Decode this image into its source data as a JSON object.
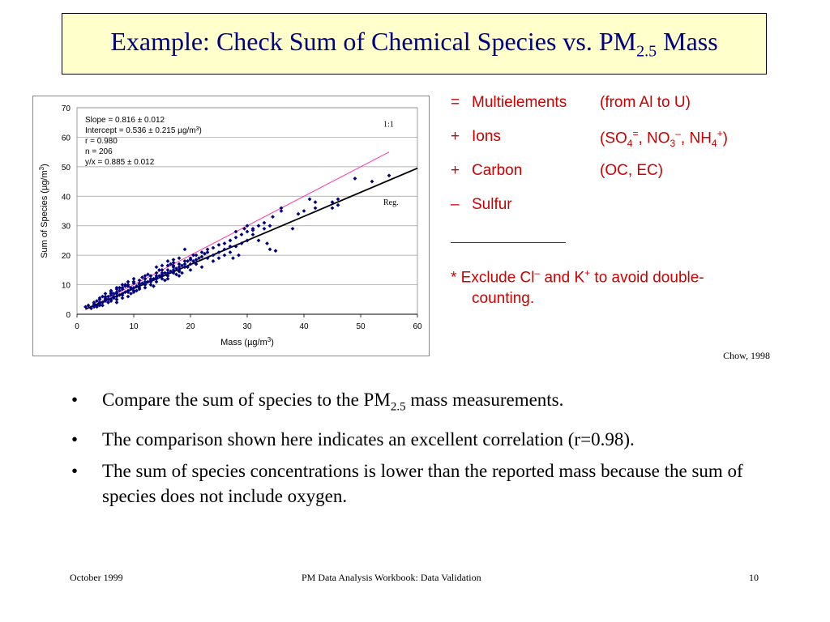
{
  "slide": {
    "title_main": "Example: Check Sum of Chemical Species vs. PM",
    "title_sub": "2.5",
    "title_tail": " Mass"
  },
  "legend": {
    "rows": [
      {
        "op": "=",
        "name": "Multielements",
        "paren": "(from Al to U)"
      },
      {
        "op": "+",
        "name": "Ions"
      },
      {
        "op": "+",
        "name": "Carbon",
        "paren": "(OC, EC)"
      },
      {
        "op": "–",
        "name": "Sulfur"
      }
    ],
    "ions_paren": {
      "open": "(SO",
      "so_sub": "4",
      "so_sup": "=",
      "mid1": ", NO",
      "no_sub": "3",
      "no_sup": "–",
      "mid2": ", NH",
      "nh_sub": "4",
      "nh_sup": "+",
      "close": ")"
    },
    "note": {
      "part1": "* Exclude Cl",
      "cl_sup": "–",
      "part2": " and K",
      "k_sup": "+",
      "part3": " to avoid double-",
      "line2": "counting."
    }
  },
  "citation": "Chow, 1998",
  "bullets": [
    {
      "pre": "Compare the sum of species to the PM",
      "sub": "2.5",
      "post": " mass measurements."
    },
    {
      "pre": "The comparison shown here indicates an excellent correlation (r=0.98)."
    },
    {
      "pre": "The sum of species concentrations is lower than the reported mass because the sum of species does not include oxygen."
    }
  ],
  "bullet_symbol": "•",
  "footer": {
    "left": "October 1999",
    "center": "PM Data Analysis Workbook:  Data Validation",
    "right": "10"
  },
  "colors": {
    "title_bg": "#ffffcc",
    "title_text": "#000080",
    "legend_text": "#cc0000",
    "points": "#000080",
    "one_to_one_line": "#ff33aa",
    "regression_line": "#000000"
  },
  "chart_data": {
    "type": "scatter",
    "xlabel": "Mass (µg/m",
    "xlabel_sup": "3",
    "xlabel_close": ")",
    "ylabel": "Sum of Species (µg/m",
    "ylabel_sup": "3",
    "ylabel_close": ")",
    "xlim": [
      0,
      60
    ],
    "ylim": [
      0,
      70
    ],
    "xticks": [
      0,
      10,
      20,
      30,
      40,
      50,
      60
    ],
    "yticks": [
      0,
      10,
      20,
      30,
      40,
      50,
      60,
      70
    ],
    "grid": "horizontal",
    "stats": [
      "Slope = 0.816 ± 0.012",
      "Intercept = 0.536 ± 0.215 µg/m",
      "r = 0.980",
      "n = 206",
      "y/x = 0.885 ± 0.012"
    ],
    "intercept_unit_sup": "3",
    "intercept_unit_close": ")",
    "lines": [
      {
        "label": "1:1",
        "slope": 1,
        "intercept": 0
      },
      {
        "label": "Reg.",
        "slope": 0.816,
        "intercept": 0.536
      }
    ],
    "points": [
      [
        1.5,
        2.5
      ],
      [
        2.5,
        2
      ],
      [
        3,
        3
      ],
      [
        3,
        4
      ],
      [
        3.5,
        2.5
      ],
      [
        3.5,
        4.5
      ],
      [
        4,
        3
      ],
      [
        4,
        5
      ],
      [
        4.5,
        4
      ],
      [
        4.5,
        6
      ],
      [
        5,
        4.5
      ],
      [
        5,
        5.5
      ],
      [
        5,
        7
      ],
      [
        5.5,
        5
      ],
      [
        5.5,
        6
      ],
      [
        6,
        5
      ],
      [
        6,
        6.5
      ],
      [
        6,
        7.5
      ],
      [
        6.5,
        5.5
      ],
      [
        6.5,
        7
      ],
      [
        7,
        6
      ],
      [
        7,
        7
      ],
      [
        7,
        8.5
      ],
      [
        7,
        4
      ],
      [
        7.5,
        6.5
      ],
      [
        7.5,
        8
      ],
      [
        8,
        7
      ],
      [
        8,
        9
      ],
      [
        8,
        5.5
      ],
      [
        8.5,
        7.5
      ],
      [
        8.5,
        9.5
      ],
      [
        9,
        8
      ],
      [
        9,
        10
      ],
      [
        9.5,
        9
      ],
      [
        9.5,
        7
      ],
      [
        10,
        9
      ],
      [
        10,
        10.5
      ],
      [
        10,
        7.5
      ],
      [
        10.5,
        9.5
      ],
      [
        11,
        10
      ],
      [
        11,
        11.5
      ],
      [
        11,
        8.5
      ],
      [
        11.5,
        10.5
      ],
      [
        12,
        10
      ],
      [
        12,
        12
      ],
      [
        12,
        9
      ],
      [
        12.5,
        11
      ],
      [
        13,
        11.5
      ],
      [
        13,
        13
      ],
      [
        13,
        10
      ],
      [
        13.5,
        12
      ],
      [
        14,
        12.5
      ],
      [
        14,
        14
      ],
      [
        14,
        11
      ],
      [
        14.5,
        13
      ],
      [
        15,
        13.5
      ],
      [
        15,
        15
      ],
      [
        15,
        12
      ],
      [
        15.5,
        14
      ],
      [
        16,
        13
      ],
      [
        16,
        15
      ],
      [
        16,
        16.5
      ],
      [
        16.5,
        14.5
      ],
      [
        17,
        14
      ],
      [
        17,
        16
      ],
      [
        17,
        17.5
      ],
      [
        17.5,
        15.5
      ],
      [
        18,
        15
      ],
      [
        18,
        17
      ],
      [
        18,
        13
      ],
      [
        18.5,
        16.5
      ],
      [
        19,
        22
      ],
      [
        19,
        17
      ],
      [
        19.5,
        18
      ],
      [
        20,
        17
      ],
      [
        20,
        19
      ],
      [
        20,
        15
      ],
      [
        20.5,
        18
      ],
      [
        21,
        18.5
      ],
      [
        21,
        20
      ],
      [
        21.5,
        19
      ],
      [
        22,
        16
      ],
      [
        22,
        19.5
      ],
      [
        22.5,
        20.5
      ],
      [
        23,
        19
      ],
      [
        23,
        21
      ],
      [
        24,
        20
      ],
      [
        24,
        22.5
      ],
      [
        25,
        21
      ],
      [
        25,
        23.5
      ],
      [
        26,
        22
      ],
      [
        26,
        24
      ],
      [
        27,
        21
      ],
      [
        27,
        25
      ],
      [
        27.5,
        19
      ],
      [
        28,
        23
      ],
      [
        28,
        26
      ],
      [
        28.5,
        20
      ],
      [
        29,
        24
      ],
      [
        29,
        27
      ],
      [
        29.5,
        29
      ],
      [
        30,
        28
      ],
      [
        30,
        25
      ],
      [
        31,
        27
      ],
      [
        31,
        29
      ],
      [
        32,
        30
      ],
      [
        32,
        25
      ],
      [
        33,
        31
      ],
      [
        33,
        29
      ],
      [
        33.5,
        24
      ],
      [
        34,
        22
      ],
      [
        34.5,
        33
      ],
      [
        35,
        21.5
      ],
      [
        36,
        35
      ],
      [
        38,
        29
      ],
      [
        40,
        35
      ],
      [
        41,
        39
      ],
      [
        42,
        36
      ],
      [
        45,
        38
      ],
      [
        46,
        39
      ],
      [
        49,
        46
      ],
      [
        52,
        45
      ],
      [
        55,
        47
      ],
      [
        4,
        3.5
      ],
      [
        5,
        6
      ],
      [
        6,
        4.5
      ],
      [
        7.5,
        9
      ],
      [
        9,
        6
      ],
      [
        10.5,
        8
      ],
      [
        11.5,
        12.5
      ],
      [
        12.5,
        13.5
      ],
      [
        13.5,
        9.5
      ],
      [
        14.5,
        15
      ],
      [
        15.5,
        11.5
      ],
      [
        16.5,
        17
      ],
      [
        17.5,
        13.5
      ],
      [
        18.5,
        14
      ],
      [
        19.5,
        16
      ],
      [
        20.5,
        20
      ],
      [
        3,
        3.5
      ],
      [
        4,
        4
      ],
      [
        4.5,
        3
      ],
      [
        5.5,
        4
      ],
      [
        6.5,
        6
      ],
      [
        7,
        9
      ],
      [
        8,
        6.5
      ],
      [
        8.5,
        10
      ],
      [
        9,
        7.5
      ],
      [
        9.5,
        8.5
      ],
      [
        10,
        11
      ],
      [
        11,
        9
      ],
      [
        12,
        11
      ],
      [
        13,
        12
      ],
      [
        14,
        13
      ],
      [
        15,
        14
      ],
      [
        16,
        14
      ],
      [
        17,
        15
      ],
      [
        18,
        16
      ],
      [
        19,
        18
      ],
      [
        20,
        18.5
      ],
      [
        2,
        3
      ],
      [
        3.5,
        3
      ],
      [
        6,
        8
      ],
      [
        7,
        5
      ],
      [
        8,
        10
      ],
      [
        9,
        9.5
      ],
      [
        10,
        8
      ],
      [
        11,
        10.5
      ],
      [
        12,
        10.5
      ],
      [
        13,
        11
      ],
      [
        14,
        12
      ],
      [
        15,
        13
      ],
      [
        16,
        12
      ],
      [
        17,
        16.5
      ],
      [
        18,
        14.5
      ],
      [
        19,
        16
      ],
      [
        21,
        17
      ],
      [
        22,
        21
      ],
      [
        23,
        22
      ],
      [
        24,
        18
      ],
      [
        25,
        19
      ],
      [
        26,
        20
      ],
      [
        27,
        23
      ],
      [
        28,
        28
      ],
      [
        30,
        30
      ],
      [
        31,
        28.5
      ],
      [
        34,
        30
      ],
      [
        36,
        36
      ],
      [
        39,
        34
      ],
      [
        42,
        38
      ],
      [
        45,
        36
      ],
      [
        46,
        37
      ],
      [
        14,
        16
      ],
      [
        15,
        16.5
      ],
      [
        16,
        18
      ],
      [
        17,
        18.5
      ],
      [
        18,
        19
      ],
      [
        12,
        13
      ],
      [
        10,
        12
      ],
      [
        9,
        11
      ],
      [
        8,
        8.5
      ],
      [
        7,
        7.5
      ],
      [
        6,
        7
      ],
      [
        5,
        5
      ],
      [
        4,
        5.5
      ],
      [
        3,
        2.5
      ]
    ]
  }
}
